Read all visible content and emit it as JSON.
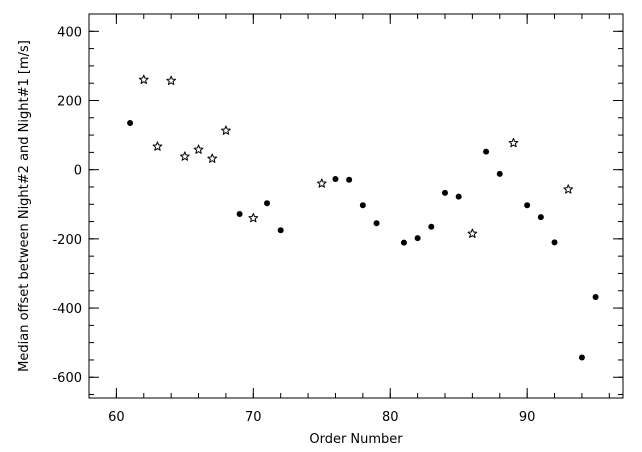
{
  "chart_data": {
    "type": "scatter",
    "title": "",
    "xlabel": "Order Number",
    "ylabel": "Median offset between Night#2 and Night#1 [m/s]",
    "xlim": [
      58,
      97
    ],
    "ylim": [
      -660,
      450
    ],
    "xticks": [
      60,
      70,
      80,
      90
    ],
    "yticks": [
      -600,
      -400,
      -200,
      0,
      200,
      400
    ],
    "x_minor_step": 2,
    "y_minor_step": 50,
    "grid": false,
    "legend": "none",
    "series": [
      {
        "marker": "filled-circle",
        "points": [
          [
            61,
            135
          ],
          [
            69,
            -128
          ],
          [
            71,
            -97
          ],
          [
            72,
            -175
          ],
          [
            76,
            -27
          ],
          [
            77,
            -29
          ],
          [
            78,
            -103
          ],
          [
            79,
            -155
          ],
          [
            81,
            -211
          ],
          [
            82,
            -198
          ],
          [
            83,
            -165
          ],
          [
            84,
            -67
          ],
          [
            85,
            -78
          ],
          [
            87,
            52
          ],
          [
            88,
            -12
          ],
          [
            90,
            -103
          ],
          [
            91,
            -137
          ],
          [
            92,
            -210
          ],
          [
            94,
            -543
          ],
          [
            95,
            -368
          ]
        ]
      },
      {
        "marker": "open-star",
        "points": [
          [
            62,
            260
          ],
          [
            63,
            67
          ],
          [
            64,
            257
          ],
          [
            65,
            38
          ],
          [
            66,
            58
          ],
          [
            67,
            32
          ],
          [
            68,
            113
          ],
          [
            70,
            -140
          ],
          [
            75,
            -40
          ],
          [
            86,
            -185
          ],
          [
            89,
            77
          ],
          [
            93,
            -57
          ]
        ]
      }
    ]
  }
}
